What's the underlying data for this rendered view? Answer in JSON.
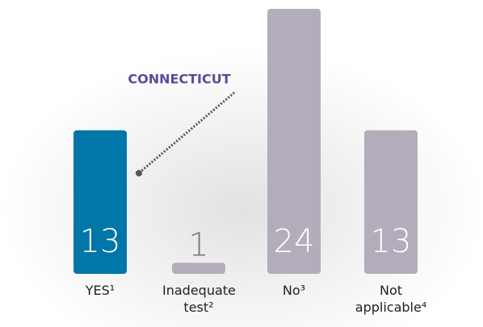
{
  "chart_data": {
    "type": "bar",
    "categories": [
      "YES¹",
      "Inadequate test²",
      "No³",
      "Not applicable⁴"
    ],
    "values": [
      13,
      1,
      24,
      13
    ],
    "colors": [
      "#0077a8",
      "#b3adbb",
      "#b3adbb",
      "#b3adbb"
    ],
    "annotation": "CONNECTICUT"
  }
}
